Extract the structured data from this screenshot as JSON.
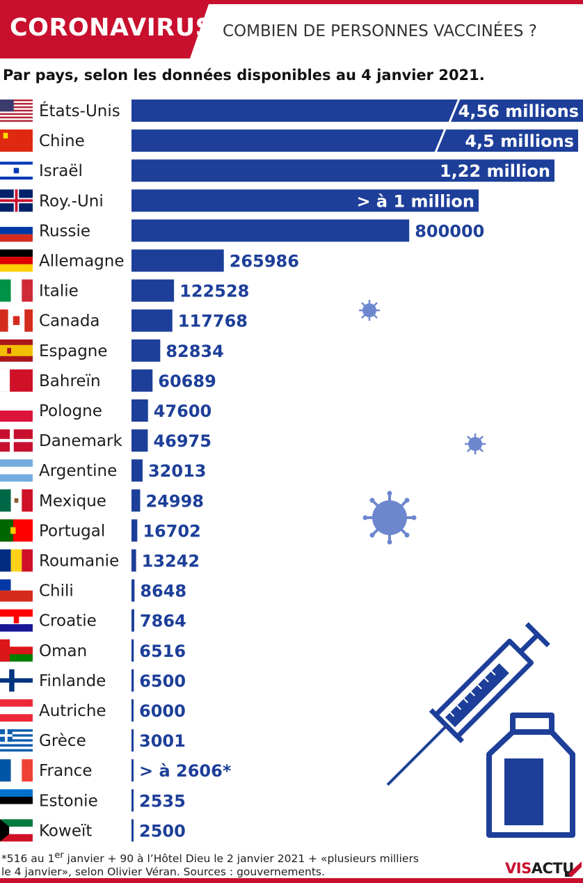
{
  "header": {
    "title": "CORONAVIRUS",
    "question": "COMBIEN DE PERSONNES VACCINÉES ?"
  },
  "subtitle": "Par pays, selon les données disponibles au 4 janvier 2021.",
  "chart_data": {
    "type": "bar",
    "orientation": "horizontal",
    "bar_color": "#1d3f99",
    "categories": [
      "États-Unis",
      "Chine",
      "Israël",
      "Roy.-Uni",
      "Russie",
      "Allemagne",
      "Italie",
      "Canada",
      "Espagne",
      "Bahreïn",
      "Pologne",
      "Danemark",
      "Argentine",
      "Mexique",
      "Portugal",
      "Roumanie",
      "Chili",
      "Croatie",
      "Oman",
      "Finlande",
      "Autriche",
      "Grèce",
      "France",
      "Estonie",
      "Koweït"
    ],
    "values": [
      4560000,
      4500000,
      1220000,
      1000000,
      800000,
      265986,
      122528,
      117768,
      82834,
      60689,
      47600,
      46975,
      32013,
      24998,
      16702,
      13242,
      8648,
      7864,
      6516,
      6500,
      6000,
      3001,
      2606,
      2535,
      2500
    ],
    "data_labels": [
      "4,56 millions",
      "4,5 millions",
      "1,22 million",
      "> à 1 million",
      "800000",
      "265986",
      "122528",
      "117768",
      "82834",
      "60689",
      "47600",
      "46975",
      "32013",
      "24998",
      "16702",
      "13242",
      "8648",
      "7864",
      "6516",
      "6500",
      "6000",
      "3001",
      "> à 2606*",
      "2535",
      "2500"
    ],
    "broken_bars": [
      "États-Unis",
      "Chine"
    ]
  },
  "footnote": {
    "line1_pre": "*516 au 1",
    "line1_sup": "er",
    "line1_post": " janvier + 90 à l’Hôtel Dieu le 2 janvier 2021 + «plusieurs milliers",
    "line2": "le 4 janvier», selon Olivier Véran. Sources : gouvernements."
  },
  "logo": {
    "part1": "VIS",
    "part2": "ACTU"
  },
  "icons": [
    "flag-icon",
    "virus-icon",
    "syringe-icon",
    "vaccine-vial-icon"
  ],
  "colors": {
    "accent_red": "#c8102e",
    "bar_blue": "#1d3f99"
  }
}
